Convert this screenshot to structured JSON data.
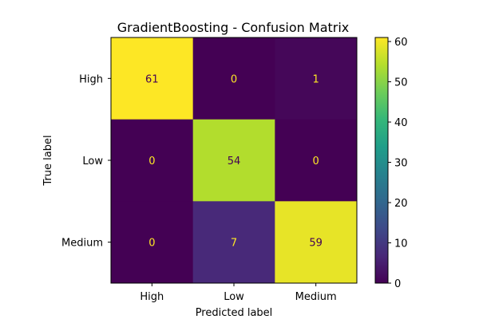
{
  "chart_data": {
    "type": "heatmap",
    "title": "GradientBoosting - Confusion Matrix",
    "xlabel": "Predicted label",
    "ylabel": "True label",
    "x_categories": [
      "High",
      "Low",
      "Medium"
    ],
    "y_categories": [
      "High",
      "Low",
      "Medium"
    ],
    "values": [
      [
        61,
        0,
        1
      ],
      [
        0,
        54,
        0
      ],
      [
        0,
        7,
        59
      ]
    ],
    "colormap": "viridis",
    "colorbar": {
      "range": [
        0,
        61
      ],
      "ticks": [
        0,
        10,
        20,
        30,
        40,
        50,
        60
      ]
    },
    "colors": {
      "cell_text_on_dark": "#fde725",
      "cell_text_on_light": "#440154"
    }
  }
}
